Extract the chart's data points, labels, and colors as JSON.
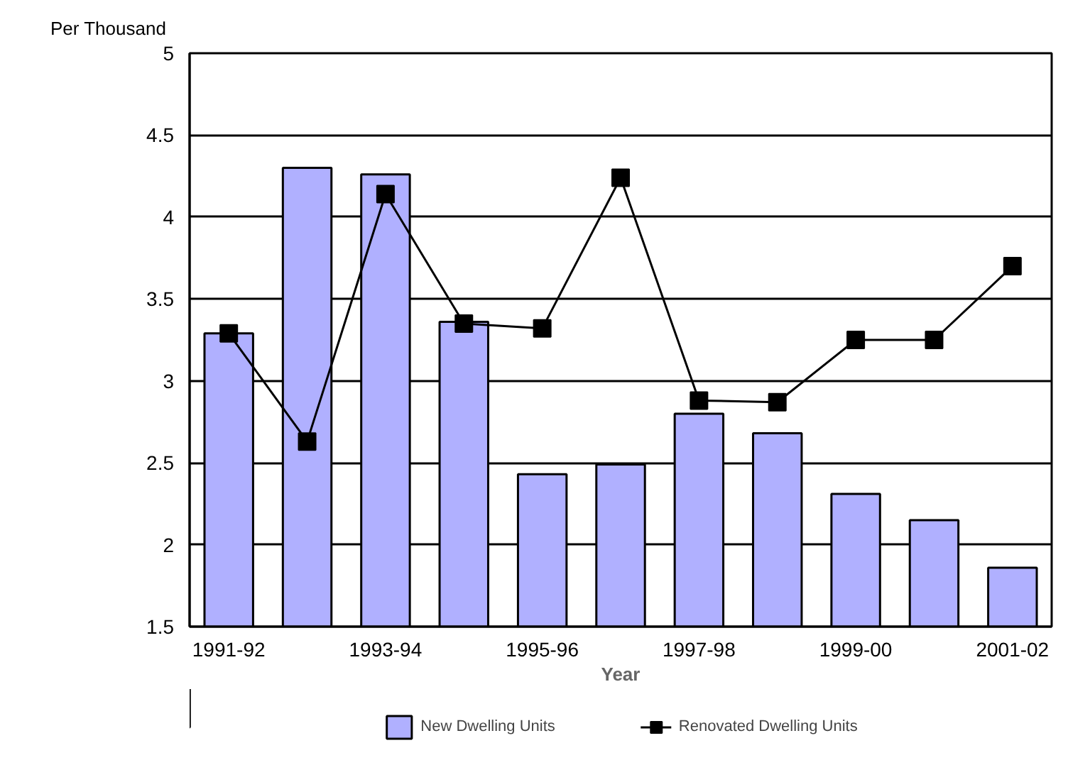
{
  "chart_data": {
    "type": "bar",
    "ylabel": "Per Thousand",
    "xlabel": "Year",
    "categories": [
      "1991-92",
      null,
      "1993-94",
      null,
      "1995-96",
      null,
      "1997-98",
      null,
      "1999-00",
      null,
      "2001-02"
    ],
    "series": [
      {
        "name": "New Dwelling Units",
        "color": "#b0b0ff",
        "values": [
          3.29,
          4.3,
          4.26,
          3.36,
          2.43,
          2.49,
          2.8,
          2.68,
          2.31,
          2.15,
          1.86
        ]
      },
      {
        "name": "Renovated Dwelling Units",
        "color": "#000000",
        "type": "line",
        "marker": "square",
        "values": [
          3.29,
          2.63,
          4.14,
          3.35,
          3.32,
          4.24,
          2.88,
          2.87,
          3.25,
          3.25,
          3.7
        ]
      }
    ],
    "ylim": [
      1.5,
      5
    ],
    "yticks": [
      1.5,
      2,
      2.5,
      3,
      3.5,
      4,
      4.5,
      5
    ],
    "grid": "y",
    "legend": "bottom"
  }
}
